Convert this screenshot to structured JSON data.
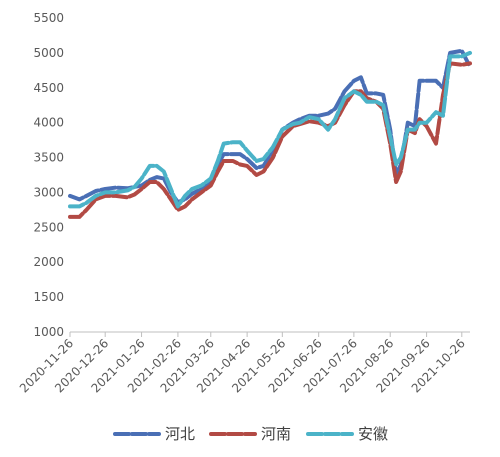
{
  "chart_data": {
    "type": "line",
    "ylim": [
      1000,
      5500
    ],
    "y_ticks": [
      "1000",
      "1500",
      "2000",
      "2500",
      "3000",
      "3500",
      "4000",
      "4500",
      "5000",
      "5500"
    ],
    "x_ticks": [
      "2020-11-26",
      "2020-12-26",
      "2021-01-26",
      "2021-02-26",
      "2021-03-26",
      "2021-04-26",
      "2021-05-26",
      "2021-06-26",
      "2021-07-26",
      "2021-08-26",
      "2021-09-26",
      "2021-10-26"
    ],
    "grid": false,
    "legend_position": "bottom",
    "line_style": "dashed",
    "series": [
      {
        "name": "河北",
        "color": "#4a6fb5",
        "values": [
          [
            "2020-11-26",
            2950
          ],
          [
            "2020-12-04",
            2900
          ],
          [
            "2020-12-10",
            2950
          ],
          [
            "2020-12-18",
            3020
          ],
          [
            "2020-12-26",
            3050
          ],
          [
            "2021-01-04",
            3070
          ],
          [
            "2021-01-14",
            3060
          ],
          [
            "2021-01-20",
            3080
          ],
          [
            "2021-01-26",
            3100
          ],
          [
            "2021-02-02",
            3180
          ],
          [
            "2021-02-08",
            3220
          ],
          [
            "2021-02-14",
            3200
          ],
          [
            "2021-02-20",
            3000
          ],
          [
            "2021-02-26",
            2860
          ],
          [
            "2021-03-04",
            2900
          ],
          [
            "2021-03-10",
            2980
          ],
          [
            "2021-03-18",
            3050
          ],
          [
            "2021-03-26",
            3150
          ],
          [
            "2021-04-01",
            3400
          ],
          [
            "2021-04-06",
            3550
          ],
          [
            "2021-04-14",
            3550
          ],
          [
            "2021-04-20",
            3550
          ],
          [
            "2021-04-26",
            3480
          ],
          [
            "2021-05-04",
            3350
          ],
          [
            "2021-05-10",
            3380
          ],
          [
            "2021-05-18",
            3600
          ],
          [
            "2021-05-26",
            3900
          ],
          [
            "2021-06-04",
            4000
          ],
          [
            "2021-06-10",
            4050
          ],
          [
            "2021-06-18",
            4100
          ],
          [
            "2021-06-26",
            4100
          ],
          [
            "2021-07-04",
            4130
          ],
          [
            "2021-07-10",
            4200
          ],
          [
            "2021-07-18",
            4450
          ],
          [
            "2021-07-26",
            4600
          ],
          [
            "2021-08-01",
            4650
          ],
          [
            "2021-08-06",
            4420
          ],
          [
            "2021-08-14",
            4420
          ],
          [
            "2021-08-20",
            4400
          ],
          [
            "2021-08-26",
            3900
          ],
          [
            "2021-08-31",
            3250
          ],
          [
            "2021-09-04",
            3400
          ],
          [
            "2021-09-10",
            4000
          ],
          [
            "2021-09-16",
            3950
          ],
          [
            "2021-09-20",
            4600
          ],
          [
            "2021-09-26",
            4600
          ],
          [
            "2021-10-04",
            4600
          ],
          [
            "2021-10-10",
            4500
          ],
          [
            "2021-10-16",
            5000
          ],
          [
            "2021-10-26",
            5030
          ],
          [
            "2021-11-02",
            4800
          ]
        ]
      },
      {
        "name": "河南",
        "color": "#b24a44",
        "values": [
          [
            "2020-11-26",
            2650
          ],
          [
            "2020-12-04",
            2650
          ],
          [
            "2020-12-10",
            2750
          ],
          [
            "2020-12-18",
            2900
          ],
          [
            "2020-12-26",
            2950
          ],
          [
            "2021-01-04",
            2950
          ],
          [
            "2021-01-14",
            2930
          ],
          [
            "2021-01-20",
            2970
          ],
          [
            "2021-01-26",
            3050
          ],
          [
            "2021-02-02",
            3150
          ],
          [
            "2021-02-08",
            3150
          ],
          [
            "2021-02-14",
            3050
          ],
          [
            "2021-02-20",
            2900
          ],
          [
            "2021-02-26",
            2750
          ],
          [
            "2021-03-04",
            2800
          ],
          [
            "2021-03-10",
            2900
          ],
          [
            "2021-03-18",
            3000
          ],
          [
            "2021-03-26",
            3100
          ],
          [
            "2021-04-01",
            3300
          ],
          [
            "2021-04-06",
            3450
          ],
          [
            "2021-04-14",
            3450
          ],
          [
            "2021-04-20",
            3400
          ],
          [
            "2021-04-26",
            3380
          ],
          [
            "2021-05-04",
            3250
          ],
          [
            "2021-05-10",
            3300
          ],
          [
            "2021-05-18",
            3500
          ],
          [
            "2021-05-26",
            3800
          ],
          [
            "2021-06-04",
            3950
          ],
          [
            "2021-06-10",
            3980
          ],
          [
            "2021-06-18",
            4020
          ],
          [
            "2021-06-26",
            4000
          ],
          [
            "2021-07-04",
            3950
          ],
          [
            "2021-07-10",
            4000
          ],
          [
            "2021-07-18",
            4250
          ],
          [
            "2021-07-26",
            4450
          ],
          [
            "2021-08-01",
            4450
          ],
          [
            "2021-08-06",
            4350
          ],
          [
            "2021-08-14",
            4300
          ],
          [
            "2021-08-20",
            4200
          ],
          [
            "2021-08-26",
            3700
          ],
          [
            "2021-08-31",
            3150
          ],
          [
            "2021-09-04",
            3300
          ],
          [
            "2021-09-10",
            3900
          ],
          [
            "2021-09-16",
            3850
          ],
          [
            "2021-09-20",
            4050
          ],
          [
            "2021-09-26",
            3950
          ],
          [
            "2021-10-04",
            3700
          ],
          [
            "2021-10-10",
            4400
          ],
          [
            "2021-10-16",
            4850
          ],
          [
            "2021-10-26",
            4830
          ],
          [
            "2021-11-02",
            4850
          ]
        ]
      },
      {
        "name": "安徽",
        "color": "#4bb3c8",
        "values": [
          [
            "2020-11-26",
            2800
          ],
          [
            "2020-12-04",
            2800
          ],
          [
            "2020-12-10",
            2850
          ],
          [
            "2020-12-18",
            2950
          ],
          [
            "2020-12-26",
            3000
          ],
          [
            "2021-01-04",
            3000
          ],
          [
            "2021-01-14",
            3030
          ],
          [
            "2021-01-20",
            3080
          ],
          [
            "2021-01-26",
            3200
          ],
          [
            "2021-02-02",
            3380
          ],
          [
            "2021-02-08",
            3380
          ],
          [
            "2021-02-14",
            3300
          ],
          [
            "2021-02-20",
            3050
          ],
          [
            "2021-02-26",
            2800
          ],
          [
            "2021-03-04",
            2950
          ],
          [
            "2021-03-10",
            3050
          ],
          [
            "2021-03-18",
            3100
          ],
          [
            "2021-03-26",
            3200
          ],
          [
            "2021-04-01",
            3450
          ],
          [
            "2021-04-06",
            3700
          ],
          [
            "2021-04-14",
            3720
          ],
          [
            "2021-04-20",
            3720
          ],
          [
            "2021-04-26",
            3600
          ],
          [
            "2021-05-04",
            3450
          ],
          [
            "2021-05-10",
            3480
          ],
          [
            "2021-05-18",
            3650
          ],
          [
            "2021-05-26",
            3900
          ],
          [
            "2021-06-04",
            3980
          ],
          [
            "2021-06-10",
            4000
          ],
          [
            "2021-06-18",
            4080
          ],
          [
            "2021-06-26",
            4050
          ],
          [
            "2021-07-04",
            3900
          ],
          [
            "2021-07-10",
            4050
          ],
          [
            "2021-07-18",
            4350
          ],
          [
            "2021-07-26",
            4450
          ],
          [
            "2021-08-01",
            4400
          ],
          [
            "2021-08-06",
            4300
          ],
          [
            "2021-08-14",
            4300
          ],
          [
            "2021-08-20",
            4250
          ],
          [
            "2021-08-26",
            3800
          ],
          [
            "2021-08-31",
            3400
          ],
          [
            "2021-09-04",
            3500
          ],
          [
            "2021-09-10",
            3900
          ],
          [
            "2021-09-16",
            3900
          ],
          [
            "2021-09-20",
            4000
          ],
          [
            "2021-09-26",
            4000
          ],
          [
            "2021-10-04",
            4150
          ],
          [
            "2021-10-10",
            4100
          ],
          [
            "2021-10-16",
            4950
          ],
          [
            "2021-10-26",
            4950
          ],
          [
            "2021-11-02",
            5000
          ]
        ]
      }
    ]
  }
}
